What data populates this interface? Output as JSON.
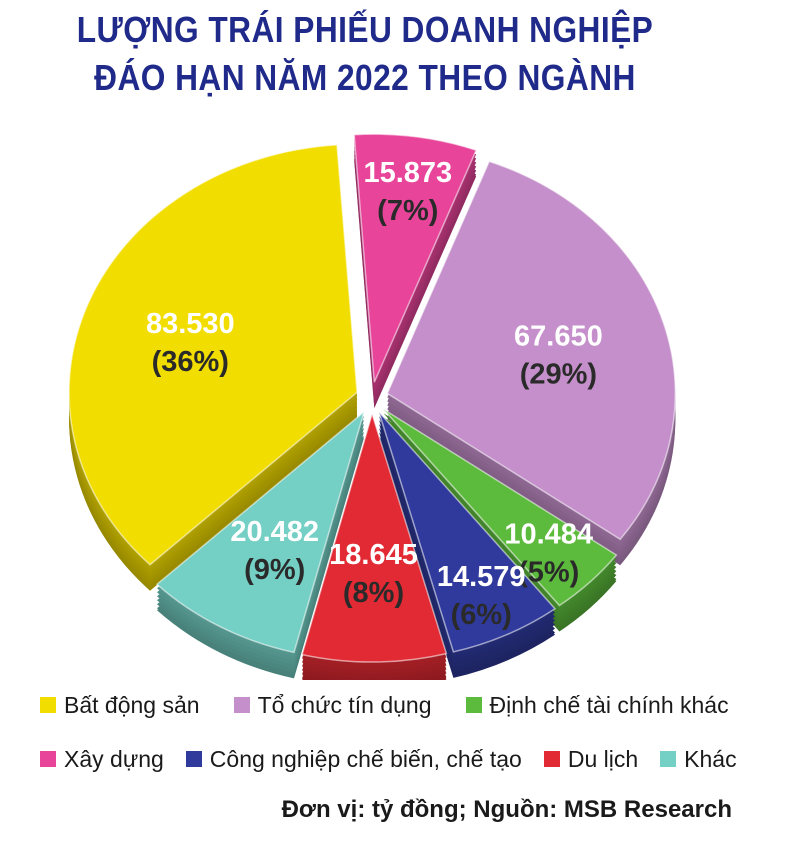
{
  "title_line1": "LƯỢNG TRÁI PHIẾU DOANH NGHIỆP",
  "title_line2": "ĐÁO HẠN NĂM 2022 THEO NGÀNH",
  "source": "Đơn vị: tỷ đồng; Nguồn: MSB Research",
  "chart_data": {
    "type": "pie",
    "title": "LƯỢNG TRÁI PHIẾU DOANH NGHIỆP ĐÁO HẠN NĂM 2022 THEO NGÀNH",
    "unit": "tỷ đồng",
    "legend_position": "bottom",
    "slices": [
      {
        "name": "Xây dựng",
        "value_label": "15.873",
        "value": 15873,
        "percent_label": "(7%)",
        "color": "#e8449a",
        "text_color": "#ffffff",
        "pct_color": "#2a2a2a"
      },
      {
        "name": "Tổ chức tín dụng",
        "value_label": "67.650",
        "value": 67650,
        "percent_label": "(29%)",
        "color": "#c48fca",
        "text_color": "#ffffff",
        "pct_color": "#2a2a2a"
      },
      {
        "name": "Định chế tài chính khác",
        "value_label": "10.484",
        "value": 10484,
        "percent_label": "(5%)",
        "color": "#5cbb3c",
        "text_color": "#ffffff",
        "pct_color": "#2a2a2a"
      },
      {
        "name": "Công nghiệp chế biến, chế tạo",
        "value_label": "14.579",
        "value": 14579,
        "percent_label": "(6%)",
        "color": "#2f3a9c",
        "text_color": "#ffffff",
        "pct_color": "#2a2a2a"
      },
      {
        "name": "Du lịch",
        "value_label": "18.645",
        "value": 18645,
        "percent_label": "(8%)",
        "color": "#e12a33",
        "text_color": "#ffffff",
        "pct_color": "#2a2a2a"
      },
      {
        "name": "Khác",
        "value_label": "20.482",
        "value": 20482,
        "percent_label": "(9%)",
        "color": "#74cfc4",
        "text_color": "#ffffff",
        "pct_color": "#2a2a2a"
      },
      {
        "name": "Bất động sản",
        "value_label": "83.530",
        "value": 83530,
        "percent_label": "(36%)",
        "color": "#f2dd00",
        "text_color": "#ffffff",
        "pct_color": "#2a2a2a"
      }
    ],
    "legend": [
      {
        "label": "Bất động sản",
        "color": "#f2dd00"
      },
      {
        "label": "Tổ chức tín dụng",
        "color": "#c48fca"
      },
      {
        "label": "Định chế tài chính khác",
        "color": "#5cbb3c"
      },
      {
        "label": "Xây dựng",
        "color": "#e8449a"
      },
      {
        "label": "Công nghiệp chế biến, chế tạo",
        "color": "#2f3a9c"
      },
      {
        "label": "Du lịch",
        "color": "#e12a33"
      },
      {
        "label": "Khác",
        "color": "#74cfc4"
      }
    ]
  }
}
